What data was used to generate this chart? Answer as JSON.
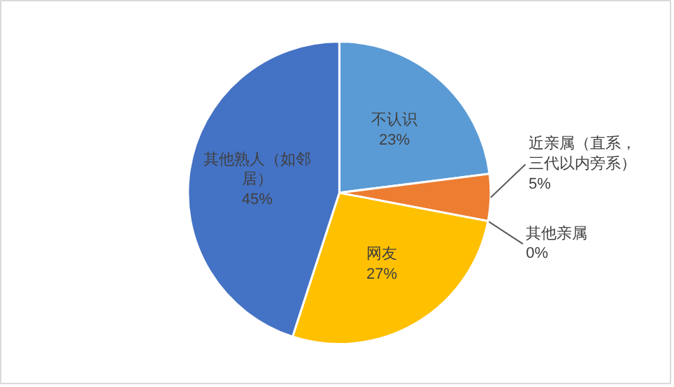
{
  "chart_data": {
    "type": "pie",
    "categories": [
      "不认识",
      "近亲属（直系，三代以内旁系）",
      "其他亲属",
      "网友",
      "其他熟人（如邻居）"
    ],
    "values": [
      23,
      5,
      0,
      27,
      45
    ],
    "colors": [
      "#5b9bd5",
      "#ed7d31",
      "#a5a5a5",
      "#ffc000",
      "#4472c4"
    ],
    "value_labels": [
      "23%",
      "5%",
      "0%",
      "27%",
      "45%"
    ]
  }
}
